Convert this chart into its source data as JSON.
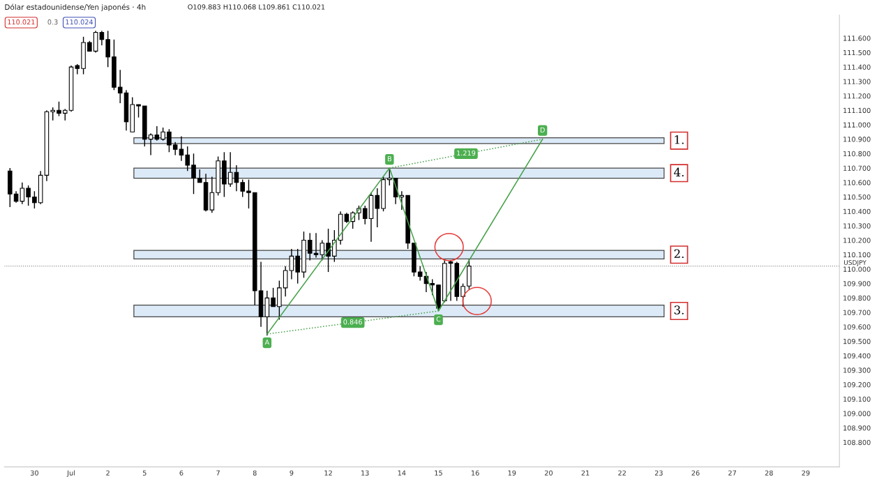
{
  "chart_data": {
    "type": "candlestick",
    "title": "Dólar estadounidense/Yen japonés · 4h",
    "subtitle": "O109.883 H110.068 L109.861 C110.021",
    "categories": [
      null,
      null,
      null,
      null,
      "30",
      null,
      null,
      null,
      null,
      null,
      "Jul",
      null,
      null,
      null,
      null,
      null,
      "2",
      null,
      null,
      null,
      null,
      null,
      "5",
      null,
      null,
      null,
      null,
      null,
      "6",
      null,
      null,
      null,
      null,
      null,
      "7",
      null,
      null,
      null,
      null,
      null,
      "8",
      null,
      null,
      null,
      null,
      null,
      "9",
      null,
      null,
      null,
      null,
      null,
      "12",
      null,
      null,
      null,
      null,
      null,
      "13",
      null,
      null,
      null,
      null,
      null,
      "14",
      null,
      null,
      null,
      null,
      null,
      "15",
      null,
      null,
      null,
      null,
      null,
      "16",
      null,
      null,
      null,
      null,
      null,
      "19",
      null,
      null,
      null,
      null,
      null,
      "20",
      null,
      null,
      null,
      null,
      null,
      "21",
      null,
      null,
      null,
      null,
      null,
      "22",
      null,
      null,
      null,
      null,
      null,
      "23",
      null,
      null,
      null,
      null,
      null,
      "26",
      null,
      null,
      null,
      null,
      null,
      "27",
      null,
      null,
      null,
      null,
      null,
      "28",
      null,
      null,
      null,
      null,
      null,
      "29",
      null,
      null,
      null,
      null,
      null
    ],
    "ohlc": [
      [
        110.68,
        110.7,
        110.43,
        110.52
      ],
      [
        110.52,
        110.54,
        110.46,
        110.47
      ],
      [
        110.47,
        110.6,
        110.45,
        110.56
      ],
      [
        110.56,
        110.58,
        110.44,
        110.5
      ],
      [
        110.5,
        110.54,
        110.42,
        110.46
      ],
      [
        110.46,
        110.68,
        110.45,
        110.65
      ],
      [
        110.65,
        111.1,
        110.61,
        111.09
      ],
      [
        111.09,
        111.12,
        111.03,
        111.1
      ],
      [
        111.1,
        111.16,
        111.06,
        111.08
      ],
      [
        111.08,
        111.11,
        111.03,
        111.1
      ],
      [
        111.1,
        111.41,
        111.09,
        111.4
      ],
      [
        111.41,
        111.42,
        111.35,
        111.39
      ],
      [
        111.39,
        111.61,
        111.35,
        111.57
      ],
      [
        111.57,
        111.58,
        111.51,
        111.51
      ],
      [
        111.51,
        111.65,
        111.5,
        111.64
      ],
      [
        111.64,
        111.65,
        111.55,
        111.59
      ],
      [
        111.59,
        111.65,
        111.4,
        111.47
      ],
      [
        111.47,
        111.59,
        111.24,
        111.26
      ],
      [
        111.26,
        111.38,
        111.15,
        111.22
      ],
      [
        111.22,
        111.24,
        110.96,
        111.02
      ],
      [
        110.95,
        111.19,
        110.95,
        111.14
      ],
      [
        111.14,
        111.14,
        111.05,
        111.13
      ],
      [
        111.13,
        111.13,
        110.85,
        110.9
      ],
      [
        110.9,
        110.94,
        110.79,
        110.93
      ],
      [
        110.93,
        110.99,
        110.89,
        110.9
      ],
      [
        110.9,
        110.98,
        110.89,
        110.95
      ],
      [
        110.95,
        110.97,
        110.81,
        110.86
      ],
      [
        110.86,
        110.88,
        110.79,
        110.83
      ],
      [
        110.83,
        110.92,
        110.75,
        110.79
      ],
      [
        110.79,
        110.85,
        110.68,
        110.72
      ],
      [
        110.72,
        110.8,
        110.52,
        110.63
      ],
      [
        110.63,
        110.69,
        110.6,
        110.6
      ],
      [
        110.6,
        110.66,
        110.4,
        110.41
      ],
      [
        110.41,
        110.64,
        110.39,
        110.53
      ],
      [
        110.53,
        110.78,
        110.51,
        110.75
      ],
      [
        110.75,
        110.81,
        110.5,
        110.59
      ],
      [
        110.59,
        110.81,
        110.57,
        110.67
      ],
      [
        110.67,
        110.72,
        110.54,
        110.6
      ],
      [
        110.6,
        110.62,
        110.5,
        110.54
      ],
      [
        110.54,
        110.62,
        110.42,
        110.53
      ],
      [
        110.53,
        110.53,
        109.75,
        109.85
      ],
      [
        109.85,
        110.05,
        109.6,
        109.67
      ],
      [
        109.67,
        109.85,
        109.54,
        109.8
      ],
      [
        109.8,
        109.87,
        109.74,
        109.74
      ],
      [
        109.74,
        109.92,
        109.65,
        109.87
      ],
      [
        109.87,
        110.02,
        109.81,
        109.99
      ],
      [
        109.99,
        110.14,
        109.93,
        110.09
      ],
      [
        110.09,
        110.14,
        109.9,
        109.98
      ],
      [
        109.98,
        110.26,
        109.94,
        110.2
      ],
      [
        110.2,
        110.25,
        110.06,
        110.11
      ],
      [
        110.11,
        110.25,
        110.08,
        110.1
      ],
      [
        110.1,
        110.2,
        110.06,
        110.18
      ],
      [
        110.18,
        110.28,
        109.98,
        110.09
      ],
      [
        110.09,
        110.27,
        110.05,
        110.2
      ],
      [
        110.2,
        110.4,
        110.17,
        110.38
      ],
      [
        110.38,
        110.39,
        110.32,
        110.33
      ],
      [
        110.33,
        110.4,
        110.28,
        110.39
      ],
      [
        110.39,
        110.44,
        110.34,
        110.42
      ],
      [
        110.42,
        110.44,
        110.31,
        110.35
      ],
      [
        110.35,
        110.53,
        110.19,
        110.51
      ],
      [
        110.51,
        110.56,
        110.29,
        110.42
      ],
      [
        110.42,
        110.64,
        110.4,
        110.62
      ],
      [
        110.62,
        110.7,
        110.58,
        110.63
      ],
      [
        110.63,
        110.63,
        110.45,
        110.5
      ],
      [
        110.5,
        110.54,
        110.41,
        110.51
      ],
      [
        110.51,
        110.51,
        110.14,
        110.18
      ],
      [
        110.18,
        110.18,
        109.95,
        109.98
      ],
      [
        109.98,
        110.02,
        109.92,
        109.95
      ],
      [
        109.95,
        109.98,
        109.84,
        109.9
      ],
      [
        109.9,
        109.93,
        109.82,
        109.89
      ],
      [
        109.89,
        109.89,
        109.71,
        109.73
      ],
      [
        109.78,
        110.06,
        109.77,
        110.04
      ],
      [
        110.05,
        110.06,
        109.78,
        110.04
      ],
      [
        110.04,
        110.05,
        109.78,
        109.81
      ],
      [
        109.81,
        109.9,
        109.74,
        109.88
      ],
      [
        109.883,
        110.068,
        109.861,
        110.021
      ],
      null,
      null,
      null,
      null,
      null,
      null,
      null,
      null,
      null,
      null,
      null,
      null,
      null,
      null,
      null,
      null,
      null,
      null,
      null,
      null,
      null,
      null,
      null,
      null,
      null,
      null,
      null,
      null,
      null,
      null,
      null,
      null,
      null,
      null,
      null,
      null,
      null,
      null,
      null,
      null,
      null,
      null,
      null,
      null,
      null,
      null,
      null,
      null,
      null,
      null,
      null,
      null,
      null,
      null,
      null,
      null,
      null,
      null,
      null,
      null
    ],
    "series": [
      {
        "type": "line",
        "color": "#43a047",
        "line_style": "solid",
        "values": [
          null,
          null,
          null,
          null,
          null,
          null,
          null,
          null,
          null,
          null,
          null,
          null,
          null,
          null,
          null,
          null,
          null,
          null,
          null,
          null,
          null,
          null,
          null,
          null,
          null,
          null,
          null,
          null,
          null,
          null,
          null,
          null,
          null,
          null,
          null,
          null,
          null,
          null,
          null,
          null,
          null,
          null,
          109.55,
          null,
          null,
          null,
          null,
          null,
          null,
          null,
          null,
          null,
          null,
          null,
          null,
          null,
          null,
          null,
          null,
          null,
          null,
          null,
          110.7,
          null,
          null,
          null,
          null,
          null,
          null,
          null,
          109.71,
          null,
          null,
          null,
          null,
          null,
          null,
          null,
          null,
          null,
          null,
          null,
          null,
          null,
          null,
          null,
          null,
          110.9,
          null,
          null,
          null,
          null,
          null,
          null,
          null,
          null,
          null,
          null,
          null,
          null,
          null,
          null,
          null,
          null,
          null,
          null,
          null,
          null,
          null,
          null,
          null,
          null,
          null,
          null,
          null,
          null,
          null,
          null,
          null,
          null,
          null,
          null,
          null,
          null,
          null,
          null,
          null,
          null,
          null,
          null,
          null,
          null,
          null,
          null,
          null,
          null
        ]
      },
      {
        "type": "line",
        "color": "#43a047",
        "line_style": "dotted",
        "values": [
          null,
          null,
          null,
          null,
          null,
          null,
          null,
          null,
          null,
          null,
          null,
          null,
          null,
          null,
          null,
          null,
          null,
          null,
          null,
          null,
          null,
          null,
          null,
          null,
          null,
          null,
          null,
          null,
          null,
          null,
          null,
          null,
          null,
          null,
          null,
          null,
          null,
          null,
          null,
          null,
          null,
          null,
          109.55,
          null,
          null,
          null,
          null,
          null,
          null,
          null,
          null,
          null,
          null,
          null,
          null,
          null,
          null,
          null,
          null,
          null,
          null,
          null,
          null,
          null,
          null,
          null,
          null,
          null,
          null,
          null,
          109.71,
          null,
          null,
          null,
          null,
          null,
          null,
          null,
          null,
          null,
          null,
          null,
          null,
          null,
          null,
          null,
          null,
          null,
          null,
          null,
          null,
          null,
          null,
          null,
          null,
          null,
          null,
          null,
          null,
          null,
          null,
          null,
          null,
          null,
          null,
          null,
          null,
          null,
          null,
          null,
          null,
          null,
          null,
          null,
          null,
          null,
          null,
          null,
          null,
          null,
          null,
          null,
          null,
          null,
          null,
          null,
          null,
          null,
          null,
          null,
          null,
          null,
          null,
          null,
          null,
          null
        ]
      },
      {
        "type": "line",
        "color": "#43a047",
        "line_style": "dotted",
        "values": [
          null,
          null,
          null,
          null,
          null,
          null,
          null,
          null,
          null,
          null,
          null,
          null,
          null,
          null,
          null,
          null,
          null,
          null,
          null,
          null,
          null,
          null,
          null,
          null,
          null,
          null,
          null,
          null,
          null,
          null,
          null,
          null,
          null,
          null,
          null,
          null,
          null,
          null,
          null,
          null,
          null,
          null,
          null,
          null,
          null,
          null,
          null,
          null,
          null,
          null,
          null,
          null,
          null,
          null,
          null,
          null,
          null,
          null,
          null,
          null,
          null,
          null,
          110.7,
          null,
          null,
          null,
          null,
          null,
          null,
          null,
          null,
          null,
          null,
          null,
          null,
          null,
          null,
          null,
          null,
          null,
          null,
          null,
          null,
          null,
          null,
          null,
          null,
          110.9,
          null,
          null,
          null,
          null,
          null,
          null,
          null,
          null,
          null,
          null,
          null,
          null,
          null,
          null,
          null,
          null,
          null,
          null,
          null,
          null,
          null,
          null,
          null,
          null,
          null,
          null,
          null,
          null,
          null,
          null,
          null,
          null,
          null,
          null,
          null,
          null,
          null,
          null,
          null,
          null,
          null,
          null,
          null,
          null,
          null,
          null,
          null,
          null
        ]
      }
    ],
    "annotations": [
      "A",
      "B",
      "C",
      "D",
      "0.846",
      "1.219",
      "110.021",
      "0.3",
      "110.024"
    ],
    "bands": [
      {
        "axis": "y",
        "from": 110.87,
        "to": 110.91,
        "label": "1.",
        "color": "#dceaf8"
      },
      {
        "axis": "y",
        "from": 110.63,
        "to": 110.7,
        "label": "4.",
        "color": "#dceaf8"
      },
      {
        "axis": "y",
        "from": 110.07,
        "to": 110.13,
        "label": "2.",
        "color": "#dceaf8"
      },
      {
        "axis": "y",
        "from": 109.67,
        "to": 109.75,
        "label": "3.",
        "color": "#dceaf8"
      }
    ],
    "ref_lines": [
      {
        "axis": "y",
        "value": 110.021,
        "label": "USDJPY",
        "color": "#888888",
        "line_style": "dotted"
      }
    ],
    "ylim": [
      108.63,
      111.76
    ],
    "yticks": [
      {
        "value": 108.8,
        "label": "108.800"
      },
      {
        "value": 108.9,
        "label": "108.900"
      },
      {
        "value": 109.0,
        "label": "109.000"
      },
      {
        "value": 109.1,
        "label": "109.100"
      },
      {
        "value": 109.2,
        "label": "109.200"
      },
      {
        "value": 109.3,
        "label": "109.300"
      },
      {
        "value": 109.4,
        "label": "109.400"
      },
      {
        "value": 109.5,
        "label": "109.500"
      },
      {
        "value": 109.6,
        "label": "109.600"
      },
      {
        "value": 109.7,
        "label": "109.700"
      },
      {
        "value": 109.8,
        "label": "109.800"
      },
      {
        "value": 109.9,
        "label": "109.900"
      },
      {
        "value": 110.0,
        "label": "110.000"
      },
      {
        "value": 110.1,
        "label": "110.100"
      },
      {
        "value": 110.2,
        "label": "110.200"
      },
      {
        "value": 110.3,
        "label": "110.300"
      },
      {
        "value": 110.4,
        "label": "110.400"
      },
      {
        "value": 110.5,
        "label": "110.500"
      },
      {
        "value": 110.6,
        "label": "110.600"
      },
      {
        "value": 110.7,
        "label": "110.700"
      },
      {
        "value": 110.8,
        "label": "110.800"
      },
      {
        "value": 110.9,
        "label": "110.900"
      },
      {
        "value": 111.0,
        "label": "111.000"
      },
      {
        "value": 111.1,
        "label": "111.100"
      },
      {
        "value": 111.2,
        "label": "111.200"
      },
      {
        "value": 111.3,
        "label": "111.300"
      },
      {
        "value": 111.4,
        "label": "111.400"
      },
      {
        "value": 111.5,
        "label": "111.500"
      },
      {
        "value": 111.6,
        "label": "111.600"
      }
    ],
    "grid": false,
    "legend": false
  }
}
